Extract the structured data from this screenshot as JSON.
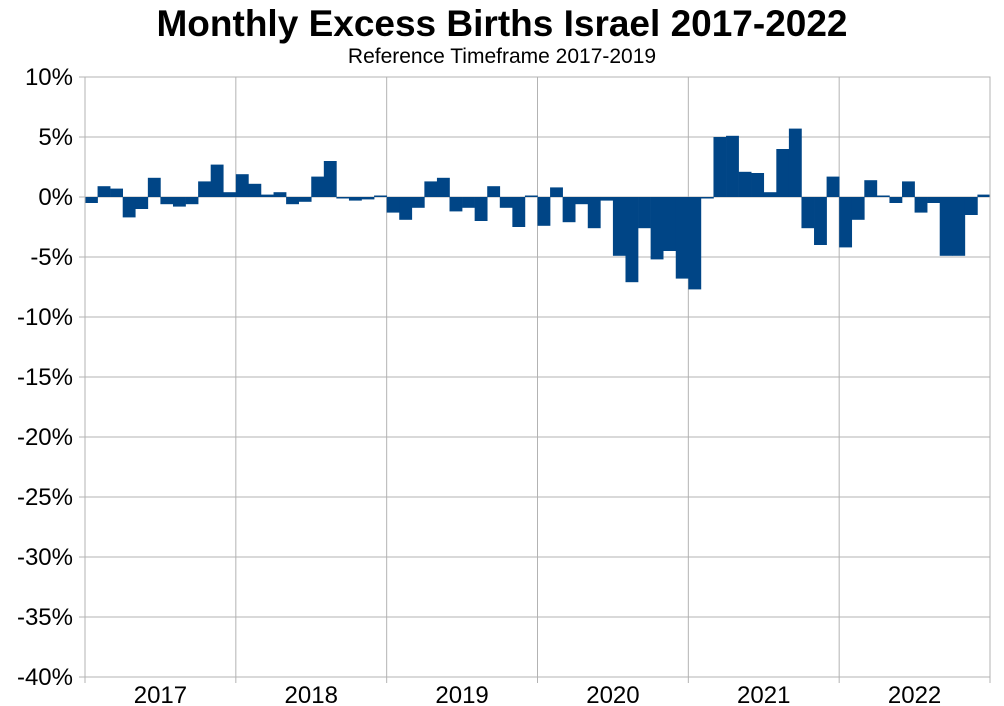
{
  "chart_data": {
    "type": "bar",
    "title": "Monthly Excess Births Israel 2017-2022",
    "subtitle": "Reference Timeframe 2017-2019",
    "xlabel": "",
    "ylabel": "",
    "ylim": [
      -40,
      10
    ],
    "y_ticks": [
      10,
      5,
      0,
      -5,
      -10,
      -15,
      -20,
      -25,
      -30,
      -35,
      -40
    ],
    "y_tick_labels": [
      "10%",
      "5%",
      "0%",
      "-5%",
      "-10%",
      "-15%",
      "-20%",
      "-25%",
      "-30%",
      "-35%",
      "-40%"
    ],
    "x_tick_labels": [
      "2017",
      "2018",
      "2019",
      "2020",
      "2021",
      "2022"
    ],
    "grid": true,
    "bar_color": "#004586",
    "grid_color": "#b3b3b3",
    "series": [
      {
        "values": [
          -0.5,
          0.9,
          0.7,
          -1.7,
          -1.0,
          1.6,
          -0.6,
          -0.8,
          -0.6,
          1.3,
          2.7,
          0.4,
          1.9,
          1.1,
          0.2,
          0.4,
          -0.6,
          -0.4,
          1.7,
          3.0,
          -0.1,
          -0.3,
          -0.2,
          0.0,
          -1.3,
          -1.9,
          -0.9,
          1.3,
          1.6,
          -1.2,
          -0.9,
          -2.0,
          0.9,
          -0.9,
          -2.5,
          0.0,
          -2.4,
          0.8,
          -2.1,
          -0.6,
          -2.6,
          -0.3,
          -4.9,
          -7.1,
          -2.6,
          -5.2,
          -4.5,
          -6.8,
          -7.7,
          -0.1,
          5.0,
          5.1,
          2.1,
          2.0,
          0.4,
          4.0,
          5.7,
          -2.6,
          -4.0,
          1.7,
          -4.2,
          -1.9,
          1.4,
          0.1,
          -0.5,
          1.3,
          -1.3,
          -0.5,
          -4.9,
          -4.9,
          -1.5,
          0.2
        ]
      }
    ]
  }
}
